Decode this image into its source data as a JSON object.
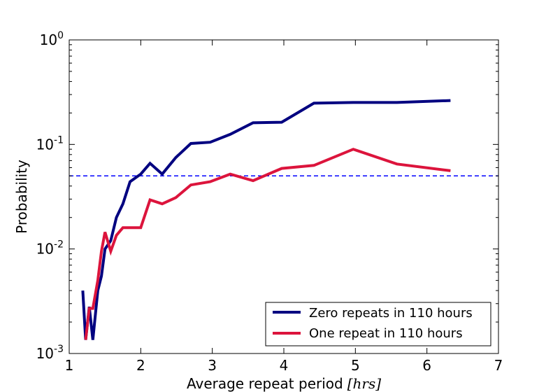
{
  "chart_data": {
    "type": "line",
    "xlabel": "Average repeat period",
    "xlabel_unit": "[hrs]",
    "ylabel": "Probability",
    "xlim": [
      1,
      7
    ],
    "ylim": [
      0.001,
      1
    ],
    "yscale": "log",
    "grid": false,
    "legend_position": "lower-right",
    "x_ticks": [
      "1",
      "2",
      "3",
      "4",
      "5",
      "6",
      "7"
    ],
    "y_ticks": [
      {
        "value": 0.001,
        "base": "10",
        "exp": "-3"
      },
      {
        "value": 0.01,
        "base": "10",
        "exp": "-2"
      },
      {
        "value": 0.1,
        "base": "10",
        "exp": "-1"
      },
      {
        "value": 1,
        "base": "10",
        "exp": "0"
      }
    ],
    "reference_line": {
      "y": 0.05,
      "color": "#0000ff",
      "style": "dashed"
    },
    "series": [
      {
        "name": "Zero repeats in 110 hours",
        "color": "#000080",
        "points": [
          [
            1.19,
            0.004
          ],
          [
            1.23,
            0.00135
          ],
          [
            1.28,
            0.0028
          ],
          [
            1.33,
            0.00135
          ],
          [
            1.4,
            0.004
          ],
          [
            1.45,
            0.0055
          ],
          [
            1.5,
            0.01
          ],
          [
            1.58,
            0.012
          ],
          [
            1.66,
            0.02
          ],
          [
            1.75,
            0.027
          ],
          [
            1.85,
            0.044
          ],
          [
            2.0,
            0.052
          ],
          [
            2.13,
            0.066
          ],
          [
            2.3,
            0.052
          ],
          [
            2.49,
            0.075
          ],
          [
            2.7,
            0.102
          ],
          [
            2.97,
            0.105
          ],
          [
            3.25,
            0.125
          ],
          [
            3.57,
            0.161
          ],
          [
            3.97,
            0.163
          ],
          [
            4.42,
            0.248
          ],
          [
            4.97,
            0.252
          ],
          [
            5.58,
            0.252
          ],
          [
            6.33,
            0.263
          ]
        ]
      },
      {
        "name": "One repeat in 110 hours",
        "color": "#dc143c",
        "points": [
          [
            1.23,
            0.00135
          ],
          [
            1.28,
            0.0027
          ],
          [
            1.33,
            0.0027
          ],
          [
            1.4,
            0.005
          ],
          [
            1.45,
            0.0095
          ],
          [
            1.5,
            0.0145
          ],
          [
            1.58,
            0.0095
          ],
          [
            1.66,
            0.0135
          ],
          [
            1.75,
            0.016
          ],
          [
            1.85,
            0.016
          ],
          [
            2.0,
            0.016
          ],
          [
            2.13,
            0.0295
          ],
          [
            2.3,
            0.027
          ],
          [
            2.49,
            0.031
          ],
          [
            2.7,
            0.041
          ],
          [
            2.97,
            0.044
          ],
          [
            3.25,
            0.052
          ],
          [
            3.57,
            0.045
          ],
          [
            3.97,
            0.059
          ],
          [
            4.42,
            0.063
          ],
          [
            4.97,
            0.09
          ],
          [
            5.58,
            0.065
          ],
          [
            6.33,
            0.056
          ]
        ]
      }
    ]
  }
}
